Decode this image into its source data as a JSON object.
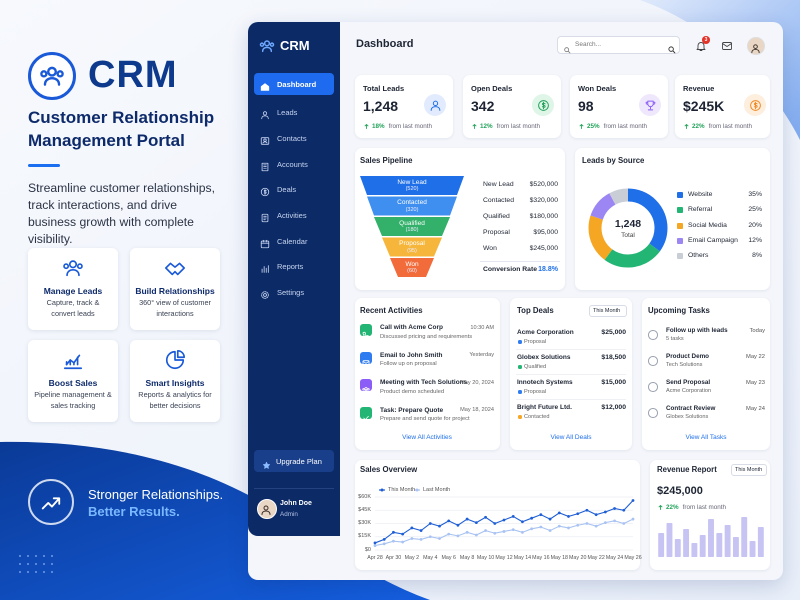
{
  "promo": {
    "title": "CRM",
    "heading": "Customer Relationship Management Portal",
    "description": "Streamline customer relationships, track interactions, and drive business growth with complete visibility.",
    "features": [
      {
        "title": "Manage Leads",
        "text": "Capture, track & convert leads"
      },
      {
        "title": "Build Relationships",
        "text": "360° view of customer interactions"
      },
      {
        "title": "Boost Sales",
        "text": "Pipeline management & sales tracking"
      },
      {
        "title": "Smart Insights",
        "text": "Reports & analytics for better decisions"
      }
    ],
    "tagline": [
      "Stronger Relationships.",
      "Better Results."
    ]
  },
  "sidebar": {
    "brand": "CRM",
    "nav": [
      "Dashboard",
      "Leads",
      "Contacts",
      "Accounts",
      "Deals",
      "Activities",
      "Calendar",
      "Reports",
      "Settings"
    ],
    "upgrade": "Upgrade Plan",
    "user": {
      "name": "John Doe",
      "role": "Admin"
    }
  },
  "header": {
    "title": "Dashboard",
    "search_placeholder": "Search...",
    "notifications": 3
  },
  "kpis": [
    {
      "label": "Total Leads",
      "value": "1,248",
      "change": "18%",
      "note": "from last month"
    },
    {
      "label": "Open Deals",
      "value": "342",
      "change": "12%",
      "note": "from last month"
    },
    {
      "label": "Won Deals",
      "value": "98",
      "change": "25%",
      "note": "from last month"
    },
    {
      "label": "Revenue",
      "value": "$245K",
      "change": "22%",
      "note": "from last month"
    }
  ],
  "sales_pipeline": {
    "title": "Sales Pipeline",
    "stages": [
      {
        "name": "New Lead",
        "count": 520,
        "count_label": "(520)",
        "amount": "$520,000",
        "color": "#1f6fe8"
      },
      {
        "name": "Contacted",
        "count": 320,
        "count_label": "(320)",
        "amount": "$320,000",
        "color": "#3f8ff0"
      },
      {
        "name": "Qualified",
        "count": 180,
        "count_label": "(180)",
        "amount": "$180,000",
        "color": "#33b06a"
      },
      {
        "name": "Proposal",
        "count": 95,
        "count_label": "(95)",
        "amount": "$95,000",
        "color": "#f5b63b"
      },
      {
        "name": "Won",
        "count": 60,
        "count_label": "(60)",
        "amount": "$245,000",
        "color": "#f26b3a"
      }
    ],
    "conversion_label": "Conversion Rate",
    "conversion_value": "18.8%"
  },
  "leads_by_source": {
    "title": "Leads by Source",
    "total": "1,248",
    "total_label": "Total",
    "items": [
      {
        "name": "Website",
        "value": 35,
        "value_label": "35%",
        "color": "#1f6fe8"
      },
      {
        "name": "Referral",
        "value": 25,
        "value_label": "25%",
        "color": "#22b573"
      },
      {
        "name": "Social Media",
        "value": 20,
        "value_label": "20%",
        "color": "#f5a623"
      },
      {
        "name": "Email Campaign",
        "value": 12,
        "value_label": "12%",
        "color": "#9b86f3"
      },
      {
        "name": "Others",
        "value": 8,
        "value_label": "8%",
        "color": "#c9ced6"
      }
    ]
  },
  "recent_activities": {
    "title": "Recent Activities",
    "items": [
      {
        "title": "Call with Acme Corp",
        "text": "Discussed pricing and requirements",
        "time": "10:30 AM"
      },
      {
        "title": "Email to John Smith",
        "text": "Follow up on proposal",
        "time": "Yesterday"
      },
      {
        "title": "Meeting with Tech Solutions",
        "text": "Product demo scheduled",
        "time": "May 20, 2024"
      },
      {
        "title": "Task: Prepare Quote",
        "text": "Prepare and send quote for project",
        "time": "May 18, 2024"
      }
    ],
    "link": "View All Activities"
  },
  "top_deals": {
    "title": "Top Deals",
    "filter": "This Month",
    "items": [
      {
        "name": "Acme Corporation",
        "stage": "Proposal",
        "amount": "$25,000"
      },
      {
        "name": "Globex Solutions",
        "stage": "Qualified",
        "amount": "$18,500"
      },
      {
        "name": "Innotech Systems",
        "stage": "Proposal",
        "amount": "$15,000"
      },
      {
        "name": "Bright Future Ltd.",
        "stage": "Contacted",
        "amount": "$12,000"
      }
    ],
    "link": "View All Deals"
  },
  "upcoming_tasks": {
    "title": "Upcoming Tasks",
    "items": [
      {
        "title": "Follow up with leads",
        "text": "5 tasks",
        "date": "Today"
      },
      {
        "title": "Product Demo",
        "text": "Tech Solutions",
        "date": "May 22"
      },
      {
        "title": "Send Proposal",
        "text": "Acme Corporation",
        "date": "May 23"
      },
      {
        "title": "Contract Review",
        "text": "Globex Solutions",
        "date": "May 24"
      }
    ],
    "link": "View All Tasks"
  },
  "sales_overview": {
    "title": "Sales Overview",
    "categories": [
      "Apr 28",
      null,
      "Apr 30",
      null,
      "May 2",
      null,
      "May 4",
      null,
      "May 6",
      null,
      "May 8",
      null,
      "May 10",
      null,
      "May 12",
      null,
      "May 14",
      null,
      "May 16",
      null,
      "May 18",
      null,
      "May 20",
      null,
      "May 22",
      null,
      "May 24",
      null,
      "May 26"
    ],
    "series": [
      {
        "name": "This Month",
        "color": "#1f5fd6",
        "values": [
          8000,
          12000,
          20000,
          18000,
          25000,
          22000,
          30000,
          27000,
          33000,
          28000,
          35000,
          31000,
          37000,
          30000,
          34000,
          38000,
          32000,
          36000,
          40000,
          35000,
          42000,
          38000,
          41000,
          45000,
          40000,
          43000,
          47000,
          45000,
          56000
        ]
      },
      {
        "name": "Last Month",
        "color": "#a9c3f2",
        "values": [
          5000,
          7000,
          10000,
          9000,
          13000,
          12000,
          15000,
          13000,
          18000,
          16000,
          20000,
          17000,
          22000,
          19000,
          21000,
          23000,
          20000,
          24000,
          26000,
          22000,
          27000,
          25000,
          28000,
          30000,
          27000,
          31000,
          33000,
          30000,
          35000
        ]
      }
    ],
    "ylim": [
      0,
      60000
    ],
    "yticks": [
      {
        "value": 0,
        "label": "$0"
      },
      {
        "value": 15000,
        "label": "$15K"
      },
      {
        "value": 30000,
        "label": "$30K"
      },
      {
        "value": 45000,
        "label": "$45K"
      },
      {
        "value": 60000,
        "label": "$60K"
      }
    ]
  },
  "revenue_report": {
    "title": "Revenue Report",
    "filter": "This Month",
    "value": "$245,000",
    "change": "22%",
    "note": "from last month",
    "bars": [
      60,
      85,
      45,
      70,
      35,
      55,
      95,
      60,
      80,
      50,
      100,
      40,
      75
    ],
    "color": "#c7c4f3"
  }
}
